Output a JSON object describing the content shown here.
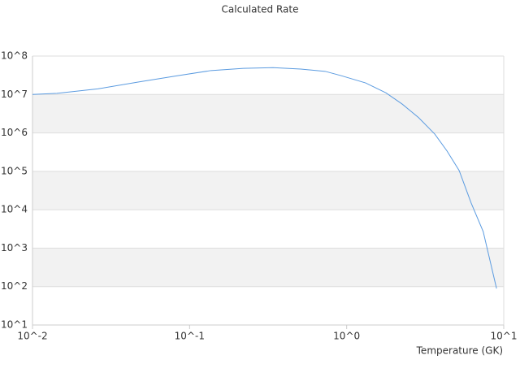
{
  "chart_data": {
    "type": "line",
    "title": "Calculated Rate",
    "x_label": "Temperature (GK)",
    "x": [
      0.01,
      0.0143,
      0.026,
      0.047,
      0.085,
      0.137,
      0.22,
      0.34,
      0.51,
      0.73,
      0.92,
      1.32,
      1.78,
      2.26,
      2.87,
      3.64,
      4.35,
      5.2,
      6.2,
      7.4,
      9.0
    ],
    "series": [
      {
        "name": "Calculated Rate",
        "color": "#5b9be0",
        "values": [
          10000000,
          10700000,
          14000000,
          21000000,
          31000000,
          42000000,
          48000000,
          50000000,
          46000000,
          40000000,
          31000000,
          20000000,
          11000000,
          5600000,
          2500000,
          930000,
          340000,
          105000,
          15000,
          2700,
          89
        ]
      }
    ],
    "xlog": true,
    "ylog": true,
    "grid": true,
    "xlim": [
      0.01,
      10
    ],
    "ylim": [
      10,
      100000000
    ],
    "xticks": [
      {
        "value": 0.01,
        "label": "10^-2"
      },
      {
        "value": 0.1,
        "label": "10^-1"
      },
      {
        "value": 1,
        "label": "10^0"
      },
      {
        "value": 10,
        "label": "10^1"
      }
    ],
    "yticks": [
      {
        "value": 10,
        "label": "10^1"
      },
      {
        "value": 100,
        "label": "10^2"
      },
      {
        "value": 1000,
        "label": "10^3"
      },
      {
        "value": 10000,
        "label": "10^4"
      },
      {
        "value": 100000,
        "label": "10^5"
      },
      {
        "value": 1000000,
        "label": "10^6"
      },
      {
        "value": 10000000,
        "label": "10^7"
      },
      {
        "value": 100000000,
        "label": "10^8"
      }
    ]
  }
}
